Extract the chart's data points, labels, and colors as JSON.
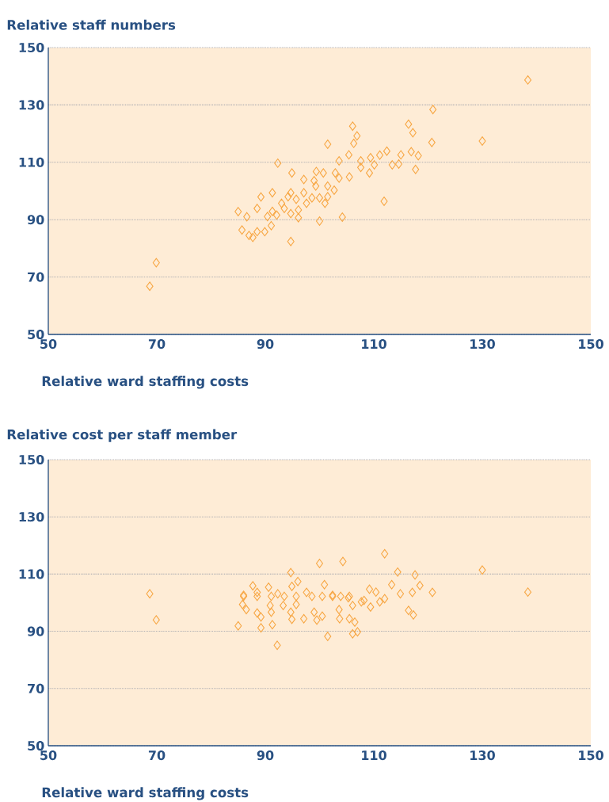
{
  "chart_data": [
    {
      "type": "scatter",
      "ylabel": "Relative staff numbers",
      "xlabel": "Relative ward staffing costs",
      "color": "#f7a540",
      "marker": "diamond",
      "grid": "y",
      "xlim": [
        50,
        150
      ],
      "ylim": [
        50,
        150
      ],
      "xticks": [
        50,
        70,
        90,
        110,
        130,
        150
      ],
      "yticks": [
        50,
        70,
        90,
        110,
        130,
        150
      ],
      "x": [
        68.7,
        69.9,
        138.4,
        130.0,
        120.9,
        116.4,
        117.2,
        120.7,
        106.1,
        106.9,
        106.3,
        101.5,
        92.3,
        105.4,
        116.9,
        118.2,
        115.0,
        112.4,
        111.1,
        109.4,
        103.6,
        107.6,
        113.4,
        114.6,
        117.7,
        110.1,
        111.9,
        104.2,
        100.0,
        94.7,
        85.0,
        86.6,
        89.2,
        91.3,
        88.5,
        85.7,
        87.0,
        87.7,
        88.5,
        89.9,
        91.1,
        90.4,
        91.3,
        92.1,
        93.5,
        94.7,
        96.1,
        96.1,
        95.7,
        94.2,
        93.0,
        97.6,
        98.6,
        100.0,
        101.5,
        101.0,
        102.7,
        97.1,
        99.0,
        99.3,
        101.5,
        103.6,
        105.5,
        102.9,
        100.7,
        99.4,
        94.9,
        109.2,
        107.6,
        97.1,
        94.7
      ],
      "values": [
        66.8,
        75.0,
        138.7,
        117.4,
        128.4,
        123.3,
        120.3,
        116.9,
        122.6,
        119.2,
        116.6,
        116.3,
        109.7,
        112.6,
        113.7,
        112.3,
        112.6,
        113.9,
        112.5,
        111.6,
        110.5,
        110.5,
        109.1,
        109.4,
        107.5,
        109.1,
        96.4,
        90.9,
        89.5,
        82.4,
        92.8,
        91.0,
        97.9,
        99.4,
        93.9,
        86.4,
        84.5,
        83.8,
        85.8,
        85.8,
        87.9,
        91.1,
        92.9,
        91.6,
        93.9,
        92.1,
        90.7,
        93.4,
        97.1,
        98.0,
        95.7,
        95.7,
        97.6,
        97.6,
        98.0,
        95.7,
        100.3,
        104.0,
        103.6,
        101.7,
        101.7,
        104.5,
        104.9,
        106.3,
        106.3,
        106.8,
        106.3,
        106.3,
        108.2,
        99.4,
        99.4
      ]
    },
    {
      "type": "scatter",
      "ylabel": "Relative cost per staff member",
      "xlabel": "Relative ward staffing costs",
      "color": "#f7a540",
      "marker": "diamond",
      "grid": "y",
      "xlim": [
        50,
        150
      ],
      "ylim": [
        50,
        150
      ],
      "xticks": [
        50,
        70,
        90,
        110,
        130,
        150
      ],
      "yticks": [
        50,
        70,
        90,
        110,
        130,
        150
      ],
      "x": [
        68.7,
        69.9,
        138.4,
        130.0,
        85.0,
        89.2,
        91.3,
        92.2,
        101.5,
        106.1,
        107.0,
        106.5,
        105.5,
        103.7,
        99.5,
        97.1,
        94.9,
        89.2,
        88.5,
        86.5,
        85.8,
        116.4,
        117.3,
        91.1,
        94.7,
        99.0,
        100.5,
        103.6,
        106.1,
        109.4,
        111.1,
        107.7,
        95.7,
        93.3,
        90.9,
        86.0,
        88.5,
        91.1,
        93.5,
        95.7,
        98.6,
        100.5,
        102.4,
        103.9,
        105.5,
        112.0,
        104.3,
        100.0,
        94.7,
        114.4,
        117.6,
        96.0,
        100.9,
        113.3,
        118.5,
        87.7,
        90.6,
        94.9,
        109.2,
        110.4,
        114.9,
        117.1,
        120.8,
        86.0,
        88.5,
        92.3,
        97.6,
        102.4,
        105.3,
        108.2,
        112.0
      ],
      "values": [
        103.1,
        94.0,
        103.7,
        111.4,
        91.9,
        91.2,
        92.3,
        85.1,
        88.2,
        89.1,
        89.8,
        93.2,
        94.4,
        94.4,
        93.9,
        94.4,
        94.2,
        95.0,
        96.4,
        97.6,
        99.4,
        97.3,
        95.7,
        96.7,
        96.7,
        96.7,
        95.3,
        97.6,
        99.0,
        98.5,
        100.3,
        100.3,
        99.4,
        99.0,
        99.0,
        102.2,
        102.2,
        102.2,
        102.2,
        102.2,
        102.2,
        102.2,
        102.2,
        102.2,
        102.2,
        117.1,
        114.4,
        113.7,
        110.5,
        110.7,
        109.7,
        107.4,
        106.3,
        106.3,
        106.0,
        105.9,
        105.4,
        105.7,
        104.7,
        103.7,
        103.1,
        103.6,
        103.6,
        102.6,
        103.6,
        103.1,
        103.6,
        102.6,
        101.7,
        100.8,
        101.4
      ]
    }
  ]
}
